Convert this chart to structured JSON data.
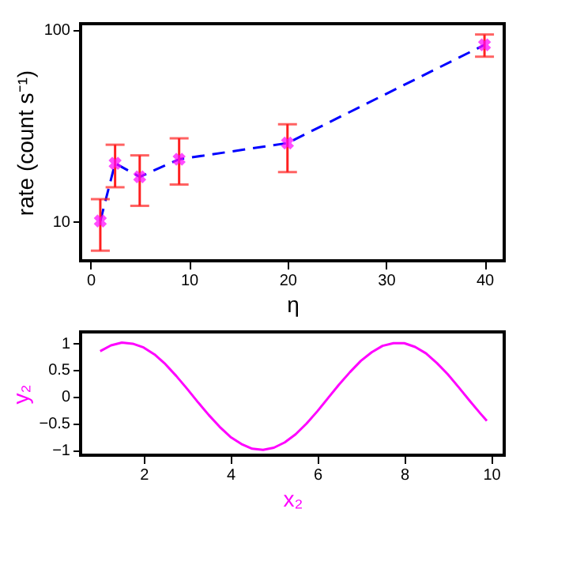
{
  "chart_data": [
    {
      "type": "scatter",
      "xlabel": "η",
      "ylabel": "rate (count s⁻¹)",
      "x": [
        1,
        2.5,
        5,
        9,
        20,
        40
      ],
      "xlim": [
        -1,
        42
      ],
      "xticks": [
        0,
        10,
        20,
        30,
        40
      ],
      "ylim": [
        6.2,
        107
      ],
      "yticks": [
        10,
        100
      ],
      "log": "y",
      "grid": false,
      "series": [
        {
          "type": "line",
          "color": "#0000ff",
          "line_style": "dashed",
          "marker": "none",
          "values": [
            10,
            20,
            17,
            21,
            25.5,
            83
          ]
        },
        {
          "color": "#ff00ff",
          "marker": "cross",
          "values": [
            10,
            20,
            17,
            21,
            25.5,
            83
          ],
          "errors": [
            [
              7,
              13
            ],
            [
              15,
              25
            ],
            [
              12,
              22
            ],
            [
              15.5,
              27
            ],
            [
              18,
              32
            ],
            [
              72,
              94
            ]
          ]
        }
      ]
    },
    {
      "type": "line",
      "xlabel": "x₂",
      "ylabel": "y₂",
      "xlim": [
        0.55,
        10.3
      ],
      "xticks": [
        2,
        4,
        6,
        8,
        10
      ],
      "ylim": [
        -1.1,
        1.2
      ],
      "yticks": [
        -1,
        -0.5,
        0,
        0.5,
        1
      ],
      "grid": false,
      "series": [
        {
          "color": "#ff00ff",
          "line_style": "solid",
          "marker": "none",
          "x": [
            1,
            1.25,
            1.5,
            1.75,
            2,
            2.25,
            2.5,
            2.75,
            3,
            3.25,
            3.5,
            3.75,
            4,
            4.25,
            4.5,
            4.75,
            5,
            5.25,
            5.5,
            5.75,
            6,
            6.25,
            6.5,
            6.75,
            7,
            7.25,
            7.5,
            7.75,
            8,
            8.25,
            8.5,
            8.75,
            9,
            9.25,
            9.5,
            9.75,
            9.9
          ],
          "values": [
            0.84,
            0.95,
            1.0,
            0.98,
            0.91,
            0.78,
            0.6,
            0.38,
            0.14,
            -0.11,
            -0.35,
            -0.57,
            -0.76,
            -0.89,
            -0.98,
            -1.0,
            -0.96,
            -0.86,
            -0.71,
            -0.51,
            -0.28,
            -0.03,
            0.22,
            0.45,
            0.66,
            0.82,
            0.94,
            0.99,
            0.99,
            0.92,
            0.8,
            0.62,
            0.41,
            0.17,
            -0.08,
            -0.32,
            -0.46
          ]
        }
      ]
    }
  ]
}
